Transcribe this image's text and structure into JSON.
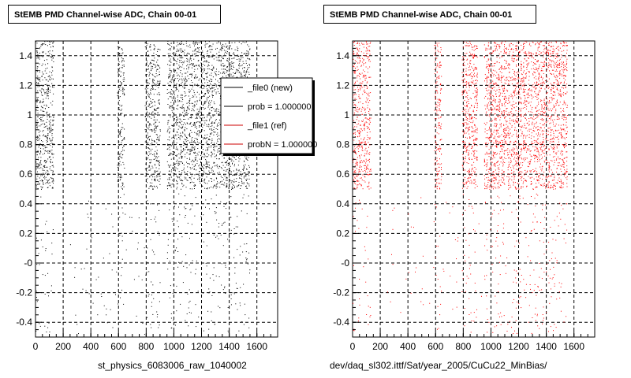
{
  "chart_data": [
    {
      "type": "scatter",
      "title": "StEMB PMD Channel-wise ADC, Chain 00-01",
      "xlabel": "st_physics_6083006_raw_1040002",
      "ylabel": "",
      "xlim": [
        0,
        1750
      ],
      "ylim": [
        -0.5,
        1.5
      ],
      "x_ticks": [
        0,
        200,
        400,
        600,
        800,
        1000,
        1200,
        1400,
        1600
      ],
      "y_ticks": [
        -0.4,
        -0.2,
        -0.0,
        0.2,
        0.4,
        0.6,
        0.8,
        1.0,
        1.2,
        1.4
      ],
      "y_tick_labels": [
        "-0.4",
        "-0.2",
        "-0",
        "0.2",
        "0.4",
        "0.6",
        "0.8",
        "1",
        "1.2",
        "1.4"
      ],
      "grid": true,
      "series": [
        {
          "name": "_file0 (new)",
          "color": "#000000",
          "dense_band": [
            0.5,
            1.5
          ],
          "x_ranges": [
            [
              0,
              130
            ],
            [
              590,
              640
            ],
            [
              790,
              900
            ],
            [
              950,
              1550
            ]
          ]
        }
      ],
      "legend": {
        "position": "top-right",
        "entries": [
          {
            "label": "_file0 (new)",
            "color": "#000000"
          },
          {
            "label": "prob = 1.000000",
            "color": "#000000"
          },
          {
            "label": "_file1 (ref)",
            "color": "#cc0000"
          },
          {
            "label": "probN = 1.000000",
            "color": "#cc0000"
          }
        ]
      }
    },
    {
      "type": "scatter",
      "title": "StEMB PMD Channel-wise ADC, Chain 00-01",
      "xlabel": "dev/daq_sl302.ittf/Sat/year_2005/CuCu22_MinBias/",
      "ylabel": "",
      "xlim": [
        0,
        1750
      ],
      "ylim": [
        -0.5,
        1.5
      ],
      "x_ticks": [
        0,
        200,
        400,
        600,
        800,
        1000,
        1200,
        1400,
        1600
      ],
      "y_ticks": [
        -0.4,
        -0.2,
        -0.0,
        0.2,
        0.4,
        0.6,
        0.8,
        1.0,
        1.2,
        1.4
      ],
      "y_tick_labels": [
        "-0.4",
        "-0.2",
        "-0",
        "0.2",
        "0.4",
        "0.6",
        "0.8",
        "1",
        "1.2",
        "1.4"
      ],
      "grid": true,
      "series": [
        {
          "name": "_file1 (ref)",
          "color": "#ff0000",
          "dense_band": [
            0.5,
            1.5
          ],
          "x_ranges": [
            [
              0,
              130
            ],
            [
              590,
              640
            ],
            [
              790,
              900
            ],
            [
              950,
              1550
            ]
          ]
        }
      ]
    }
  ]
}
